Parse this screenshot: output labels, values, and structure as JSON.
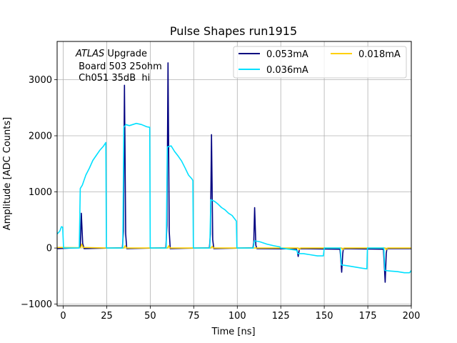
{
  "chart_data": {
    "type": "line",
    "title": "Pulse Shapes run1915",
    "xlabel": "Time [ns]",
    "ylabel": "Amplitude [ADC Counts]",
    "xlim": [
      -3.5,
      200
    ],
    "ylim": [
      -1030,
      3680
    ],
    "xticks": [
      0,
      25,
      50,
      75,
      100,
      125,
      150,
      175,
      200
    ],
    "yticks": [
      -1000,
      0,
      1000,
      2000,
      3000
    ],
    "grid": true,
    "annotation": {
      "italic": "ATLAS",
      "line1_rest": " Upgrade",
      "line2": " Board 503 25ohm",
      "line3": " Ch051 35dB  hi"
    },
    "legend": {
      "placement": "top-right",
      "columns": 2,
      "entries": [
        {
          "label": "0.053mA",
          "color": "#000080"
        },
        {
          "label": "0.036mA",
          "color": "#00e0ff"
        },
        {
          "label": "0.018mA",
          "color": "#ffd000"
        }
      ]
    },
    "series": [
      {
        "name": "0.053mA",
        "color": "#000080",
        "points": [
          [
            -3.5,
            -10
          ],
          [
            9,
            5
          ],
          [
            9.8,
            20
          ],
          [
            10.4,
            620
          ],
          [
            11.2,
            80
          ],
          [
            12,
            -10
          ],
          [
            34,
            5
          ],
          [
            34.6,
            300
          ],
          [
            35.2,
            2900
          ],
          [
            35.9,
            250
          ],
          [
            36.5,
            -10
          ],
          [
            59,
            5
          ],
          [
            59.6,
            400
          ],
          [
            60.2,
            3300
          ],
          [
            60.9,
            300
          ],
          [
            61.5,
            -10
          ],
          [
            84,
            5
          ],
          [
            84.6,
            250
          ],
          [
            85.2,
            2020
          ],
          [
            85.9,
            150
          ],
          [
            86.5,
            -10
          ],
          [
            109,
            5
          ],
          [
            109.5,
            100
          ],
          [
            110,
            720
          ],
          [
            110.7,
            50
          ],
          [
            111.3,
            -10
          ],
          [
            134,
            -15
          ],
          [
            134.5,
            -60
          ],
          [
            135,
            -150
          ],
          [
            135.6,
            -40
          ],
          [
            136,
            -10
          ],
          [
            159,
            -20
          ],
          [
            159.5,
            -200
          ],
          [
            160,
            -430
          ],
          [
            160.6,
            -100
          ],
          [
            161,
            -10
          ],
          [
            184,
            -20
          ],
          [
            184.5,
            -300
          ],
          [
            185,
            -610
          ],
          [
            185.6,
            -100
          ],
          [
            186,
            -10
          ],
          [
            200,
            -10
          ]
        ]
      },
      {
        "name": "0.036mA",
        "color": "#00e0ff",
        "points": [
          [
            -3.5,
            250
          ],
          [
            -2,
            300
          ],
          [
            -1,
            380
          ],
          [
            -0.3,
            370
          ],
          [
            0.2,
            0
          ],
          [
            9.2,
            0
          ],
          [
            9.8,
            1060
          ],
          [
            11,
            1120
          ],
          [
            13,
            1300
          ],
          [
            15,
            1420
          ],
          [
            17,
            1560
          ],
          [
            19,
            1650
          ],
          [
            21,
            1740
          ],
          [
            23,
            1810
          ],
          [
            24.5,
            1880
          ],
          [
            24.8,
            0
          ],
          [
            34.2,
            0
          ],
          [
            34.8,
            2150
          ],
          [
            36,
            2200
          ],
          [
            38,
            2180
          ],
          [
            42,
            2220
          ],
          [
            45,
            2200
          ],
          [
            48,
            2160
          ],
          [
            49.7,
            2150
          ],
          [
            50,
            0
          ],
          [
            59.2,
            0
          ],
          [
            59.8,
            1800
          ],
          [
            62,
            1820
          ],
          [
            64,
            1720
          ],
          [
            66,
            1640
          ],
          [
            68,
            1550
          ],
          [
            70,
            1430
          ],
          [
            72,
            1300
          ],
          [
            74,
            1230
          ],
          [
            74.5,
            1200
          ],
          [
            74.8,
            0
          ],
          [
            84.2,
            0
          ],
          [
            84.8,
            860
          ],
          [
            87,
            830
          ],
          [
            89,
            780
          ],
          [
            91,
            720
          ],
          [
            93,
            680
          ],
          [
            95,
            620
          ],
          [
            97,
            580
          ],
          [
            99.5,
            480
          ],
          [
            99.8,
            0
          ],
          [
            109.2,
            0
          ],
          [
            109.8,
            130
          ],
          [
            113,
            110
          ],
          [
            117,
            70
          ],
          [
            121,
            40
          ],
          [
            124.5,
            20
          ],
          [
            124.8,
            0
          ],
          [
            134.2,
            -40
          ],
          [
            134.8,
            -100
          ],
          [
            138,
            -100
          ],
          [
            142,
            -120
          ],
          [
            146,
            -140
          ],
          [
            149.5,
            -140
          ],
          [
            150,
            0
          ],
          [
            159.2,
            0
          ],
          [
            159.8,
            -300
          ],
          [
            164,
            -320
          ],
          [
            168,
            -340
          ],
          [
            172,
            -360
          ],
          [
            174.5,
            -370
          ],
          [
            174.8,
            0
          ],
          [
            184.2,
            0
          ],
          [
            184.8,
            -400
          ],
          [
            188,
            -410
          ],
          [
            192,
            -420
          ],
          [
            196,
            -440
          ],
          [
            199,
            -440
          ],
          [
            200,
            -400
          ]
        ]
      },
      {
        "name": "0.018mA",
        "color": "#ffd000",
        "points": [
          [
            -3.5,
            10
          ],
          [
            10,
            5
          ],
          [
            10.6,
            70
          ],
          [
            11.4,
            10
          ],
          [
            25,
            0
          ],
          [
            35,
            0
          ],
          [
            35.6,
            40
          ],
          [
            36.4,
            0
          ],
          [
            60,
            0
          ],
          [
            60.6,
            40
          ],
          [
            61.4,
            0
          ],
          [
            85,
            0
          ],
          [
            85.6,
            30
          ],
          [
            86.4,
            0
          ],
          [
            110,
            0
          ],
          [
            135,
            0
          ],
          [
            135.6,
            -30
          ],
          [
            136.4,
            0
          ],
          [
            160,
            0
          ],
          [
            160.6,
            -30
          ],
          [
            161.4,
            0
          ],
          [
            185,
            0
          ],
          [
            185.6,
            -30
          ],
          [
            186.4,
            0
          ],
          [
            200,
            0
          ]
        ]
      }
    ]
  }
}
